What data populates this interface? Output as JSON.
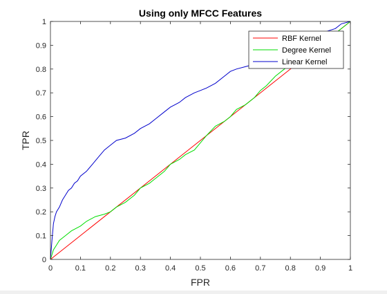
{
  "chart_data": {
    "type": "line",
    "title": "Using only MFCC Features",
    "xlabel": "FPR",
    "ylabel": "TPR",
    "xlim": [
      0,
      1
    ],
    "ylim": [
      0,
      1
    ],
    "xticks": [
      "0",
      "0.1",
      "0.2",
      "0.3",
      "0.4",
      "0.5",
      "0.6",
      "0.7",
      "0.8",
      "0.9",
      "1"
    ],
    "yticks": [
      "0",
      "0.1",
      "0.2",
      "0.3",
      "0.4",
      "0.5",
      "0.6",
      "0.7",
      "0.8",
      "0.9",
      "1"
    ],
    "grid": false,
    "legend_position": "top-right",
    "series": [
      {
        "name": "RBF Kernel",
        "color": "#ff0000",
        "x": [
          0,
          1
        ],
        "y": [
          0,
          1
        ]
      },
      {
        "name": "Degree Kernel",
        "color": "#00dd00",
        "x": [
          0,
          0.005,
          0.01,
          0.02,
          0.03,
          0.05,
          0.07,
          0.1,
          0.12,
          0.15,
          0.18,
          0.2,
          0.22,
          0.25,
          0.28,
          0.3,
          0.33,
          0.35,
          0.38,
          0.4,
          0.43,
          0.45,
          0.48,
          0.5,
          0.52,
          0.55,
          0.58,
          0.6,
          0.62,
          0.65,
          0.68,
          0.7,
          0.72,
          0.75,
          0.78,
          0.8,
          0.85,
          0.9,
          0.95,
          0.98,
          1
        ],
        "y": [
          0,
          0.02,
          0.04,
          0.06,
          0.08,
          0.1,
          0.12,
          0.14,
          0.16,
          0.18,
          0.19,
          0.2,
          0.22,
          0.24,
          0.27,
          0.3,
          0.32,
          0.34,
          0.37,
          0.4,
          0.42,
          0.44,
          0.46,
          0.49,
          0.52,
          0.56,
          0.58,
          0.6,
          0.63,
          0.65,
          0.68,
          0.71,
          0.73,
          0.77,
          0.8,
          0.82,
          0.86,
          0.9,
          0.95,
          0.98,
          1
        ]
      },
      {
        "name": "Linear Kernel",
        "color": "#0000cc",
        "x": [
          0,
          0.005,
          0.01,
          0.015,
          0.02,
          0.03,
          0.04,
          0.05,
          0.06,
          0.07,
          0.08,
          0.09,
          0.1,
          0.12,
          0.14,
          0.16,
          0.18,
          0.2,
          0.22,
          0.25,
          0.28,
          0.3,
          0.33,
          0.35,
          0.38,
          0.4,
          0.43,
          0.45,
          0.48,
          0.5,
          0.52,
          0.55,
          0.58,
          0.6,
          0.62,
          0.65,
          0.68,
          0.7,
          0.72,
          0.75,
          0.78,
          0.8,
          0.85,
          0.9,
          0.95,
          0.97,
          1
        ],
        "y": [
          0,
          0.08,
          0.15,
          0.18,
          0.2,
          0.22,
          0.25,
          0.27,
          0.29,
          0.3,
          0.32,
          0.33,
          0.35,
          0.37,
          0.4,
          0.43,
          0.46,
          0.48,
          0.5,
          0.51,
          0.53,
          0.55,
          0.57,
          0.59,
          0.62,
          0.64,
          0.66,
          0.68,
          0.7,
          0.71,
          0.72,
          0.74,
          0.77,
          0.79,
          0.8,
          0.81,
          0.82,
          0.83,
          0.84,
          0.85,
          0.87,
          0.89,
          0.92,
          0.95,
          0.97,
          0.99,
          1
        ]
      }
    ]
  }
}
